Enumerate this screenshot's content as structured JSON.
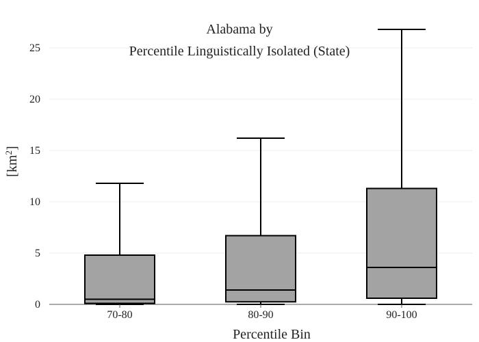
{
  "chart_data": {
    "type": "box",
    "title_lines": [
      "Alabama  by",
      "Percentile Linguistically Isolated (State)"
    ],
    "xlabel": "Percentile Bin",
    "ylabel": "[km",
    "ylabel_sup": "2",
    "ylabel_end": "]",
    "ylim": [
      0,
      27.5
    ],
    "yticks": [
      0,
      5,
      10,
      15,
      20,
      25
    ],
    "grid": true,
    "box_color": "#a3a3a3",
    "categories": [
      "70-80",
      "80-90",
      "90-100"
    ],
    "boxes": [
      {
        "category": "70-80",
        "whisker_low": 0,
        "q1": 0.1,
        "median": 0.5,
        "q3": 4.8,
        "whisker_high": 11.8
      },
      {
        "category": "80-90",
        "whisker_low": 0,
        "q1": 0.25,
        "median": 1.4,
        "q3": 6.7,
        "whisker_high": 16.2
      },
      {
        "category": "90-100",
        "whisker_low": 0,
        "q1": 0.6,
        "median": 3.6,
        "q3": 11.3,
        "whisker_high": 26.8
      }
    ]
  }
}
